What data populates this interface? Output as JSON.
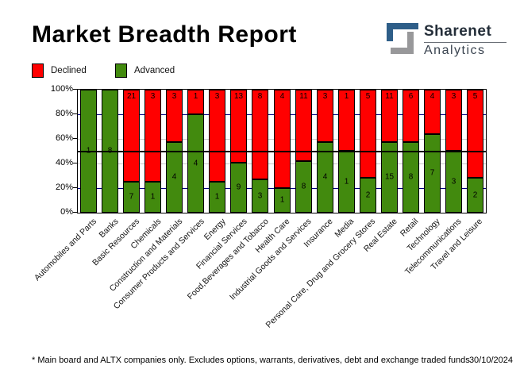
{
  "header": {
    "title": "Market Breadth Report",
    "logo": {
      "name": "Sharenet",
      "sub": "Analytics",
      "blue": "#2e5e88",
      "gray": "#98989a"
    }
  },
  "legend": [
    {
      "label": "Declined",
      "color": "#ff0000"
    },
    {
      "label": "Advanced",
      "color": "#428a0e"
    }
  ],
  "colors": {
    "declined": "#ff0000",
    "advanced": "#428a0e",
    "grid_major": "#000080",
    "grid_minor": "#c9c9c9",
    "half_line": "#000000",
    "frame": "#000000"
  },
  "chart_data": {
    "type": "bar",
    "subtype": "stacked-100-percent",
    "title": "Market Breadth Report",
    "xlabel": "",
    "ylabel": "",
    "ylim": [
      0,
      100
    ],
    "yticks": [
      0,
      20,
      40,
      60,
      80,
      100
    ],
    "ytick_suffix": "%",
    "grid": "horizontal",
    "legend_position": "top-left",
    "categories": [
      "Automobiles and Parts",
      "Banks",
      "Basic Resources",
      "Chemicals",
      "Construction and Materials",
      "Consumer Products and Services",
      "Energy",
      "Financial Services",
      "Food,Beverages and Tobacco",
      "Health Care",
      "Industrial Goods and Services",
      "Insurance",
      "Media",
      "Personal Care, Drug and Grocery Stores",
      "Real Estate",
      "Retail",
      "Technology",
      "Telecommunications",
      "Travel and Leisure"
    ],
    "series": [
      {
        "name": "Declined",
        "color": "#ff0000",
        "values": [
          0,
          0,
          21,
          3,
          3,
          1,
          3,
          13,
          8,
          4,
          11,
          3,
          1,
          5,
          11,
          6,
          4,
          3,
          5
        ]
      },
      {
        "name": "Advanced",
        "color": "#428a0e",
        "values": [
          1,
          8,
          7,
          1,
          4,
          4,
          1,
          9,
          3,
          1,
          8,
          4,
          1,
          2,
          15,
          8,
          7,
          3,
          2
        ]
      }
    ]
  },
  "footer": {
    "note": "* Main board and ALTX companies only. Excludes options, warrants, derivatives, debt and exchange traded funds",
    "date": "30/10/2024"
  }
}
